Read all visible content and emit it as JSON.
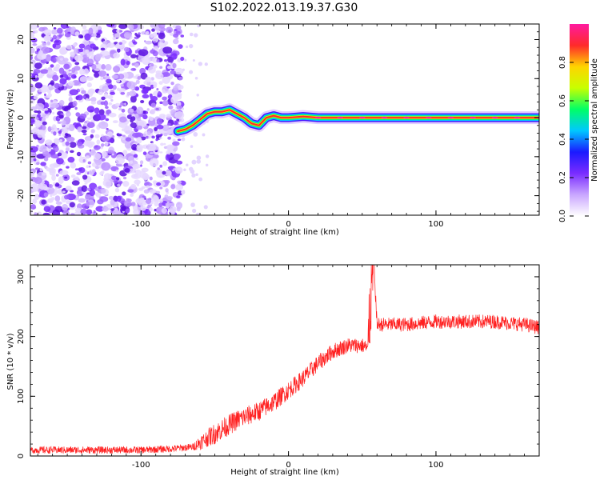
{
  "title": "S102.2022.013.19.37.G30",
  "chart_data": [
    {
      "type": "heatmap",
      "panel": "top",
      "xlabel": "Height of straight line (km)",
      "ylabel": "Frequency (Hz)",
      "xlim": [
        -175,
        170
      ],
      "ylim": [
        -25,
        24
      ],
      "x_ticks": [
        "-100",
        "0",
        "100"
      ],
      "y_ticks": [
        "20",
        "10",
        "0",
        "-10",
        "-20"
      ],
      "colorbar": {
        "label": "Normalized spectral amplitude",
        "range": [
          0,
          1
        ],
        "ticks": [
          "0.0",
          "0.2",
          "0.4",
          "0.6",
          "0.8"
        ],
        "colors": [
          "#ffffff",
          "#c9a6ff",
          "#7a2cff",
          "#1a1aff",
          "#00c8ff",
          "#00ff66",
          "#c8ff00",
          "#ffd400",
          "#ff2a2a",
          "#ff1aa0"
        ]
      },
      "noise_region_x": [
        -175,
        -72
      ],
      "signal_track": {
        "x": [
          -75,
          -70,
          -65,
          -60,
          -55,
          -50,
          -45,
          -40,
          -35,
          -30,
          -25,
          -20,
          -15,
          -10,
          -5,
          0,
          10,
          20,
          40,
          60,
          80,
          100,
          120,
          140,
          160,
          170
        ],
        "y": [
          -3.5,
          -3.0,
          -2.0,
          -0.5,
          1.0,
          1.5,
          1.5,
          2.0,
          1.0,
          0.0,
          -1.5,
          -2.0,
          0.0,
          0.5,
          0.0,
          0.0,
          0.3,
          0.0,
          0.0,
          0.0,
          0.0,
          0.0,
          0.0,
          0.0,
          0.0,
          0.0
        ]
      }
    },
    {
      "type": "line",
      "panel": "bottom",
      "xlabel": "Height of straight line (km)",
      "ylabel": "SNR (10 * v/v)",
      "xlim": [
        -175,
        170
      ],
      "ylim": [
        0,
        320
      ],
      "x_ticks": [
        "-100",
        "0",
        "100"
      ],
      "y_ticks": [
        "300",
        "200",
        "100",
        "0"
      ],
      "color": "#ff2020",
      "trend": {
        "x": [
          -175,
          -150,
          -120,
          -100,
          -80,
          -65,
          -55,
          -45,
          -35,
          -20,
          -10,
          0,
          10,
          20,
          30,
          40,
          50,
          54,
          55,
          57,
          58,
          60,
          80,
          100,
          120,
          140,
          160,
          170
        ],
        "y": [
          10,
          10,
          10,
          10,
          12,
          15,
          30,
          45,
          60,
          75,
          90,
          110,
          130,
          155,
          175,
          185,
          185,
          180,
          230,
          300,
          320,
          220,
          220,
          225,
          225,
          225,
          220,
          215
        ]
      },
      "noise_amplitude": {
        "x": [
          -175,
          -65,
          -60,
          -50,
          60,
          170
        ],
        "y": [
          6,
          6,
          12,
          18,
          12,
          12
        ]
      }
    }
  ]
}
